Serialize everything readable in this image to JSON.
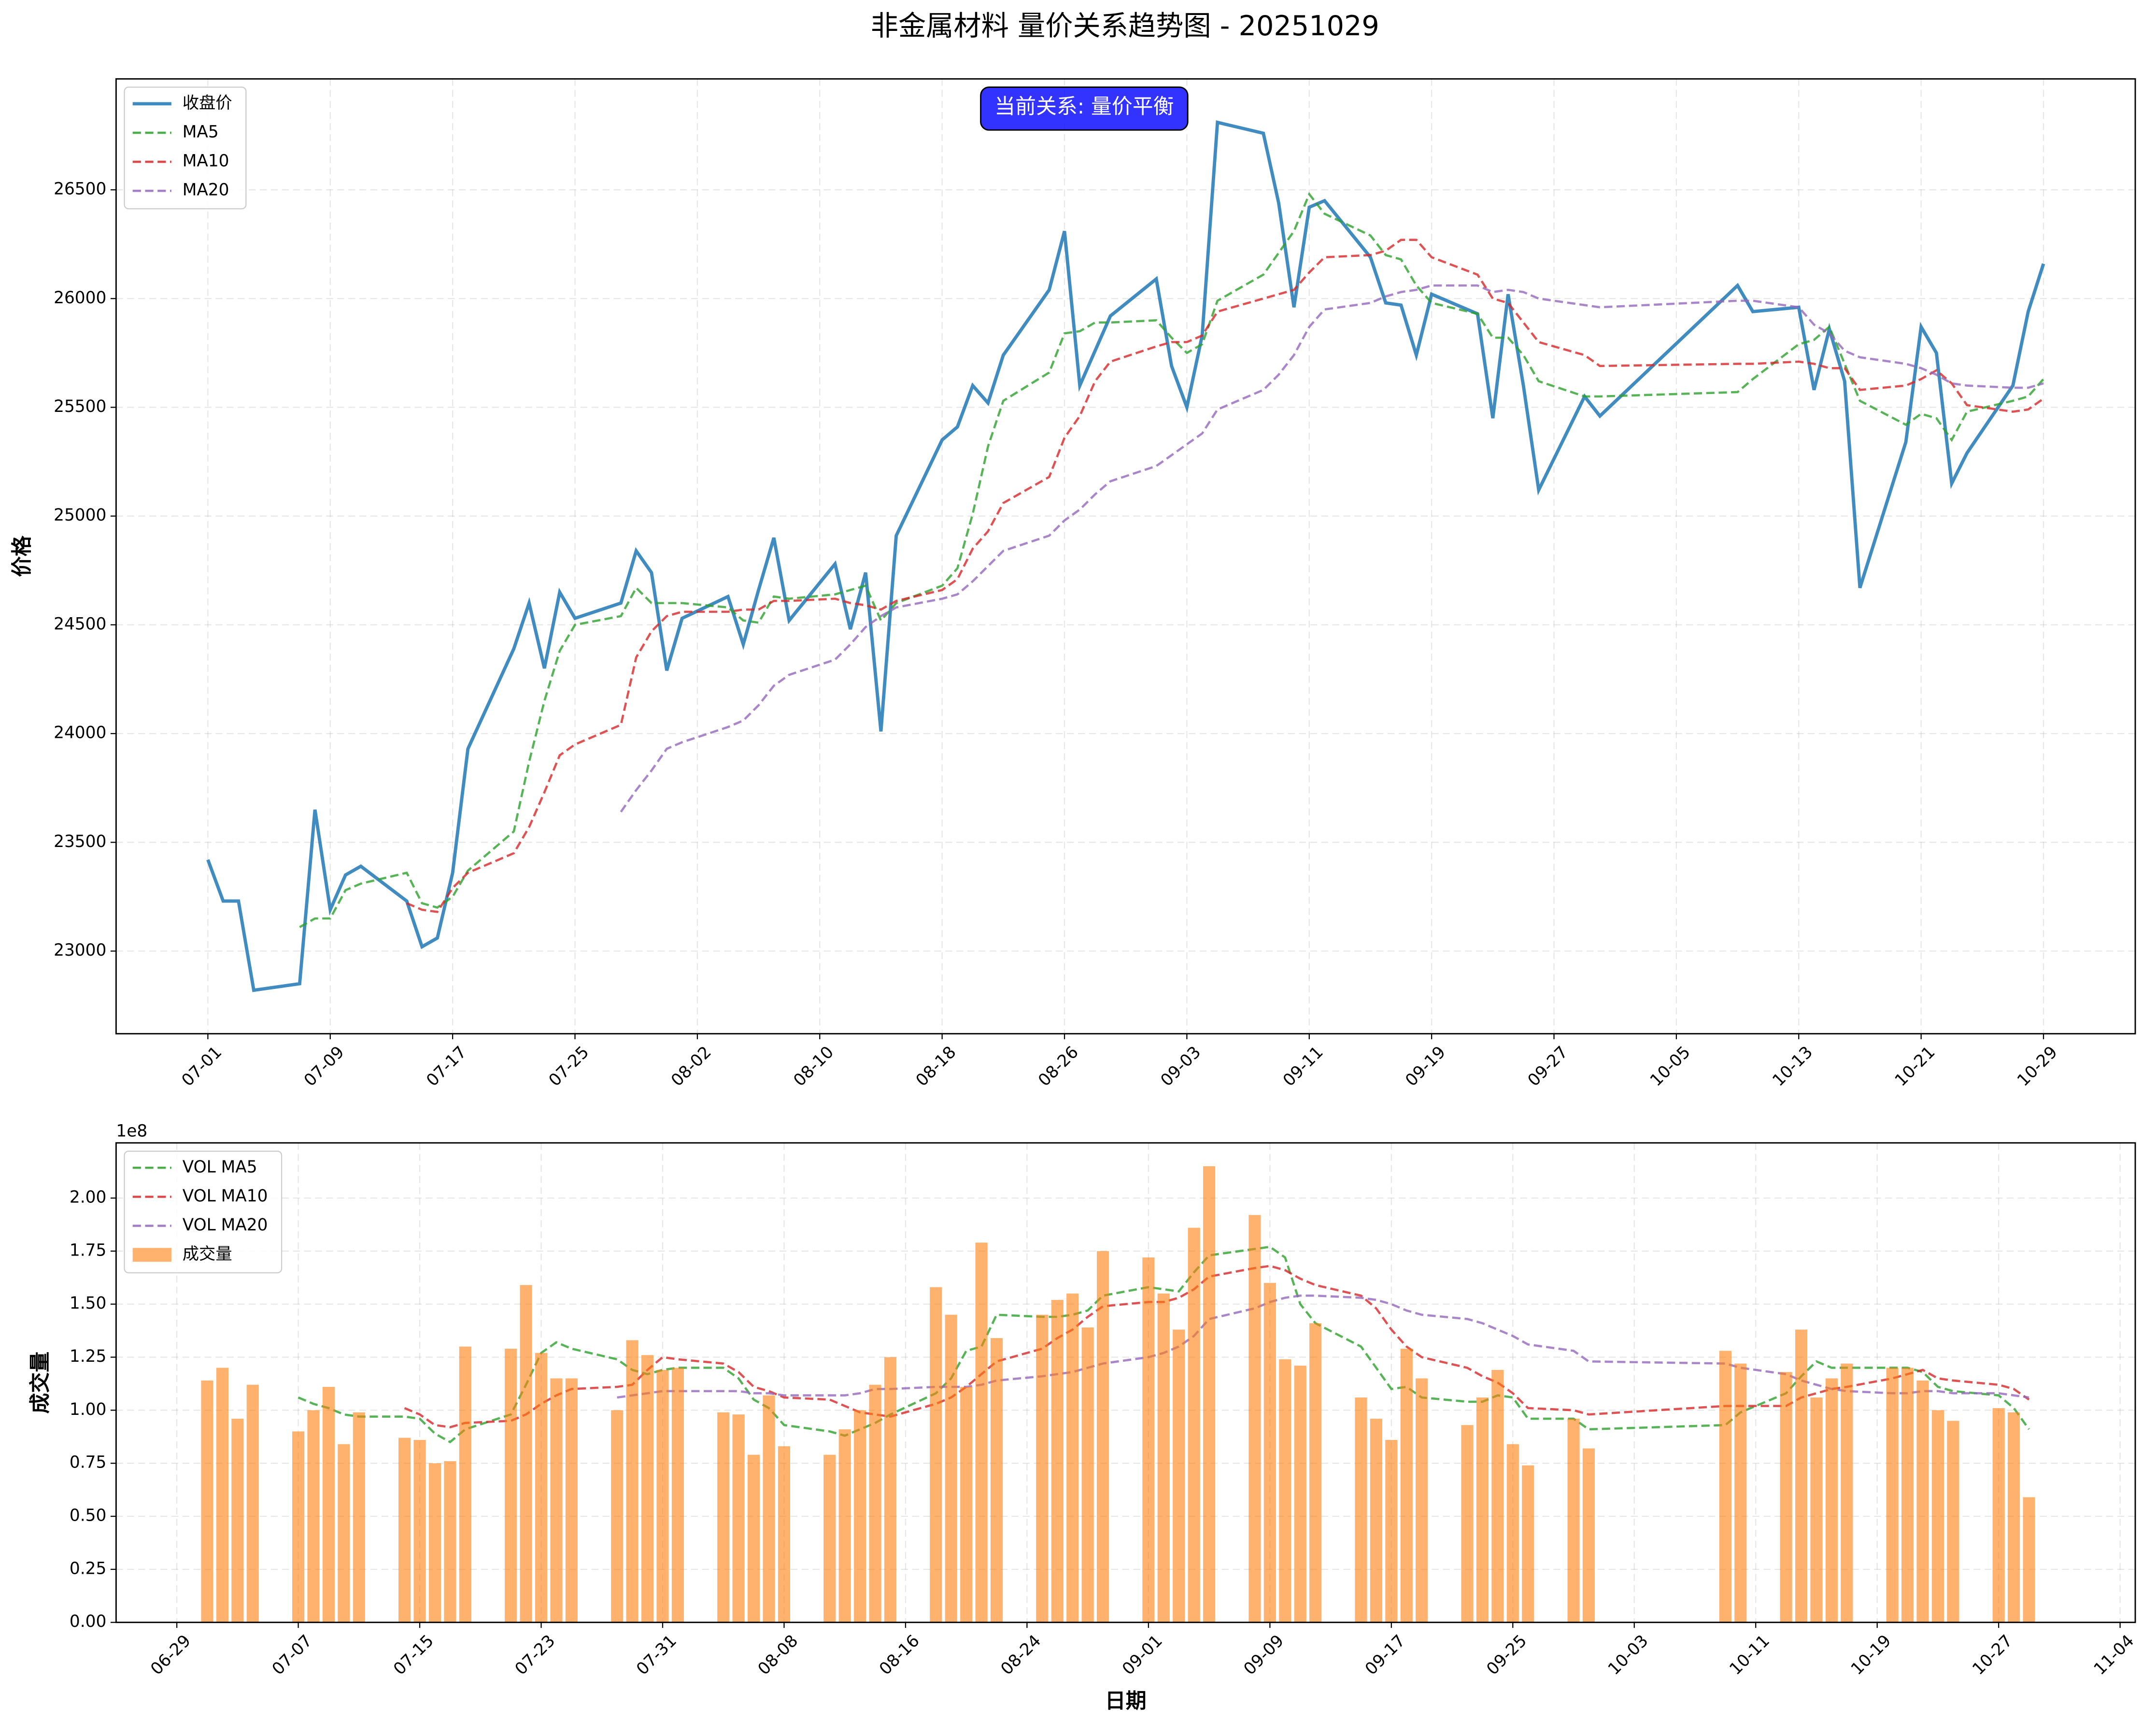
{
  "title": "非金属材料 量价关系趋势图 - 20251029",
  "chart_data": [
    {
      "type": "line",
      "ylabel": "价格",
      "legend": "upper left",
      "grid": true,
      "annotation": {
        "text": "当前关系: 量价平衡",
        "color": "#0000ff"
      },
      "xlim": [
        "06-25",
        "11-04"
      ],
      "xticks": [
        "07-01",
        "07-09",
        "07-17",
        "07-25",
        "08-02",
        "08-10",
        "08-18",
        "08-26",
        "09-03",
        "09-11",
        "09-19",
        "09-27",
        "10-05",
        "10-13",
        "10-21",
        "10-29"
      ],
      "ylim": [
        22620,
        27010
      ],
      "yticks": [
        23000,
        23500,
        24000,
        24500,
        25000,
        25500,
        26000,
        26500
      ],
      "x": [
        "07-01",
        "07-02",
        "07-03",
        "07-04",
        "07-07",
        "07-08",
        "07-09",
        "07-10",
        "07-11",
        "07-14",
        "07-15",
        "07-16",
        "07-17",
        "07-18",
        "07-21",
        "07-22",
        "07-23",
        "07-24",
        "07-25",
        "07-28",
        "07-29",
        "07-30",
        "07-31",
        "08-01",
        "08-04",
        "08-05",
        "08-06",
        "08-07",
        "08-08",
        "08-11",
        "08-12",
        "08-13",
        "08-14",
        "08-15",
        "08-18",
        "08-19",
        "08-20",
        "08-21",
        "08-22",
        "08-25",
        "08-26",
        "08-27",
        "08-28",
        "08-29",
        "09-01",
        "09-02",
        "09-03",
        "09-04",
        "09-05",
        "09-08",
        "09-09",
        "09-10",
        "09-11",
        "09-12",
        "09-15",
        "09-16",
        "09-17",
        "09-18",
        "09-19",
        "09-22",
        "09-23",
        "09-24",
        "09-25",
        "09-26",
        "09-29",
        "09-30",
        "10-09",
        "10-10",
        "10-13",
        "10-14",
        "10-15",
        "10-16",
        "10-17",
        "10-20",
        "10-21",
        "10-22",
        "10-23",
        "10-24",
        "10-27",
        "10-28",
        "10-29"
      ],
      "series": [
        {
          "name": "收盘价",
          "color": "#1f77b4",
          "dash": false,
          "values": [
            23420,
            23230,
            23230,
            22820,
            22850,
            23650,
            23190,
            23350,
            23390,
            23230,
            23020,
            23060,
            23360,
            23930,
            24390,
            24600,
            24300,
            24650,
            24530,
            24600,
            24840,
            24740,
            24290,
            24530,
            24630,
            24410,
            24660,
            24900,
            24520,
            24780,
            24480,
            24740,
            24010,
            24910,
            25350,
            25410,
            25600,
            25520,
            25740,
            26040,
            26310,
            25600,
            25760,
            25920,
            26090,
            25690,
            25500,
            25830,
            26810,
            26760,
            26440,
            25960,
            26420,
            26450,
            26190,
            25980,
            25970,
            25740,
            26020,
            25930,
            25450,
            26020,
            25600,
            25120,
            25550,
            25460,
            26060,
            25940,
            25960,
            25580,
            25860,
            25620,
            24670,
            25340,
            25870,
            25750,
            25150,
            25290,
            25600,
            25940,
            26160
          ]
        },
        {
          "name": "MA5",
          "color": "#2ca02c",
          "dash": true,
          "values": [
            null,
            null,
            null,
            null,
            23110,
            23150,
            23150,
            23280,
            23310,
            23360,
            23220,
            23200,
            23250,
            23370,
            23550,
            23870,
            24150,
            24380,
            24500,
            24540,
            24670,
            24600,
            24600,
            24600,
            24580,
            24520,
            24510,
            24630,
            24620,
            24640,
            24660,
            24680,
            24520,
            24600,
            24680,
            24760,
            25010,
            25320,
            25530,
            25660,
            25840,
            25850,
            25890,
            25890,
            25900,
            25820,
            25750,
            25790,
            25990,
            26110,
            26210,
            26310,
            26480,
            26390,
            26290,
            26200,
            26180,
            26060,
            25980,
            25930,
            25820,
            25820,
            25740,
            25620,
            25550,
            25550,
            25570,
            25630,
            25790,
            25810,
            25870,
            25700,
            25530,
            25420,
            25470,
            25450,
            25350,
            25480,
            25530,
            25550,
            25630
          ]
        },
        {
          "name": "MA10",
          "color": "#d62728",
          "dash": true,
          "values": [
            null,
            null,
            null,
            null,
            null,
            null,
            null,
            null,
            null,
            23220,
            23190,
            23180,
            23290,
            23360,
            23450,
            23570,
            23730,
            23900,
            23950,
            24040,
            24350,
            24470,
            24540,
            24560,
            24560,
            24570,
            24570,
            24610,
            24610,
            24620,
            24600,
            24590,
            24570,
            24610,
            24660,
            24710,
            24850,
            24930,
            25060,
            25180,
            25360,
            25460,
            25620,
            25710,
            25780,
            25800,
            25800,
            25830,
            25940,
            26000,
            26020,
            26040,
            26120,
            26190,
            26200,
            26220,
            26270,
            26270,
            26190,
            26110,
            26000,
            25980,
            25890,
            25800,
            25740,
            25690,
            25700,
            25700,
            25710,
            25700,
            25680,
            25680,
            25580,
            25600,
            25630,
            25670,
            25610,
            25510,
            25480,
            25490,
            25540
          ]
        },
        {
          "name": "MA20",
          "color": "#9467bd",
          "dash": true,
          "values": [
            null,
            null,
            null,
            null,
            null,
            null,
            null,
            null,
            null,
            null,
            null,
            null,
            null,
            null,
            null,
            null,
            null,
            null,
            null,
            23640,
            23740,
            23830,
            23930,
            23960,
            24030,
            24060,
            24130,
            24220,
            24270,
            24340,
            24410,
            24490,
            24540,
            24580,
            24620,
            24640,
            24700,
            24770,
            24840,
            24910,
            24980,
            25030,
            25100,
            25160,
            25230,
            25280,
            25330,
            25380,
            25490,
            25580,
            25650,
            25740,
            25870,
            25950,
            25980,
            26010,
            26030,
            26040,
            26060,
            26060,
            26030,
            26040,
            26030,
            26000,
            25970,
            25960,
            25990,
            25990,
            25960,
            25880,
            25840,
            25760,
            25730,
            25700,
            25680,
            25650,
            25610,
            25600,
            25590,
            25590,
            25610
          ]
        }
      ]
    },
    {
      "type": "bar",
      "ylabel": "成交量",
      "xlabel": "日期",
      "offset_label": "1e8",
      "legend": "upper left",
      "grid": true,
      "xlim": [
        "06-25",
        "11-05"
      ],
      "xticks": [
        "06-29",
        "07-07",
        "07-15",
        "07-23",
        "07-31",
        "08-08",
        "08-16",
        "08-24",
        "09-01",
        "09-09",
        "09-17",
        "09-25",
        "10-03",
        "10-11",
        "10-19",
        "10-27",
        "11-04"
      ],
      "ylim": [
        0,
        2.26
      ],
      "yticks": [
        {
          "value": 0,
          "label": "0.00"
        },
        {
          "value": 0.25,
          "label": "0.25"
        },
        {
          "value": 0.5,
          "label": "0.50"
        },
        {
          "value": 0.75,
          "label": "0.75"
        },
        {
          "value": 1,
          "label": "1.00"
        },
        {
          "value": 1.25,
          "label": "1.25"
        },
        {
          "value": 1.5,
          "label": "1.50"
        },
        {
          "value": 1.75,
          "label": "1.75"
        },
        {
          "value": 2,
          "label": "2.00"
        }
      ],
      "x": [
        "07-01",
        "07-02",
        "07-03",
        "07-04",
        "07-07",
        "07-08",
        "07-09",
        "07-10",
        "07-11",
        "07-14",
        "07-15",
        "07-16",
        "07-17",
        "07-18",
        "07-21",
        "07-22",
        "07-23",
        "07-24",
        "07-25",
        "07-28",
        "07-29",
        "07-30",
        "07-31",
        "08-01",
        "08-04",
        "08-05",
        "08-06",
        "08-07",
        "08-08",
        "08-11",
        "08-12",
        "08-13",
        "08-14",
        "08-15",
        "08-18",
        "08-19",
        "08-20",
        "08-21",
        "08-22",
        "08-25",
        "08-26",
        "08-27",
        "08-28",
        "08-29",
        "09-01",
        "09-02",
        "09-03",
        "09-04",
        "09-05",
        "09-08",
        "09-09",
        "09-10",
        "09-11",
        "09-12",
        "09-15",
        "09-16",
        "09-17",
        "09-18",
        "09-19",
        "09-22",
        "09-23",
        "09-24",
        "09-25",
        "09-26",
        "09-29",
        "09-30",
        "10-09",
        "10-10",
        "10-13",
        "10-14",
        "10-15",
        "10-16",
        "10-17",
        "10-20",
        "10-21",
        "10-22",
        "10-23",
        "10-24",
        "10-27",
        "10-28",
        "10-29"
      ],
      "series": [
        {
          "name": "VOL MA5",
          "type": "line",
          "color": "#2ca02c",
          "dash": true,
          "values": [
            null,
            null,
            null,
            null,
            1.06,
            1.03,
            1.01,
            0.98,
            0.97,
            0.97,
            0.96,
            0.89,
            0.85,
            0.91,
            0.98,
            1.12,
            1.27,
            1.32,
            1.29,
            1.24,
            1.19,
            1.17,
            1.19,
            1.2,
            1.2,
            1.15,
            1.05,
            1.01,
            0.93,
            0.9,
            0.88,
            0.91,
            0.94,
            0.98,
            1.08,
            1.15,
            1.28,
            1.3,
            1.45,
            1.44,
            1.44,
            1.45,
            1.47,
            1.54,
            1.58,
            1.57,
            1.56,
            1.65,
            1.73,
            1.76,
            1.77,
            1.72,
            1.5,
            1.41,
            1.3,
            1.2,
            1.1,
            1.11,
            1.06,
            1.04,
            1.04,
            1.07,
            1.06,
            0.96,
            0.96,
            0.91,
            0.93,
            0.99,
            1.08,
            1.16,
            1.23,
            1.2,
            1.2,
            1.2,
            1.2,
            1.18,
            1.11,
            1.09,
            1.07,
            1.01,
            0.91
          ]
        },
        {
          "name": "VOL MA10",
          "type": "line",
          "color": "#d62728",
          "dash": true,
          "values": [
            null,
            null,
            null,
            null,
            null,
            null,
            null,
            null,
            null,
            1.01,
            0.98,
            0.93,
            0.92,
            0.94,
            0.95,
            0.98,
            1.03,
            1.07,
            1.1,
            1.11,
            1.12,
            1.19,
            1.25,
            1.24,
            1.22,
            1.18,
            1.11,
            1.09,
            1.06,
            1.05,
            1.02,
            0.99,
            0.98,
            0.97,
            1.03,
            1.06,
            1.11,
            1.17,
            1.23,
            1.29,
            1.34,
            1.38,
            1.44,
            1.49,
            1.51,
            1.51,
            1.53,
            1.57,
            1.63,
            1.67,
            1.68,
            1.66,
            1.62,
            1.59,
            1.54,
            1.48,
            1.38,
            1.3,
            1.25,
            1.2,
            1.16,
            1.13,
            1.08,
            1.01,
            1,
            0.98,
            1.02,
            1.02,
            1.02,
            1.06,
            1.08,
            1.1,
            1.11,
            1.15,
            1.17,
            1.19,
            1.15,
            1.14,
            1.12,
            1.1,
            1.05
          ]
        },
        {
          "name": "VOL MA20",
          "type": "line",
          "color": "#9467bd",
          "dash": true,
          "values": [
            null,
            null,
            null,
            null,
            null,
            null,
            null,
            null,
            null,
            null,
            null,
            null,
            null,
            null,
            null,
            null,
            null,
            null,
            null,
            1.06,
            1.07,
            1.08,
            1.09,
            1.09,
            1.09,
            1.09,
            1.08,
            1.08,
            1.07,
            1.07,
            1.07,
            1.08,
            1.1,
            1.1,
            1.11,
            1.11,
            1.11,
            1.12,
            1.14,
            1.16,
            1.17,
            1.18,
            1.2,
            1.22,
            1.25,
            1.27,
            1.3,
            1.35,
            1.43,
            1.48,
            1.51,
            1.53,
            1.54,
            1.54,
            1.53,
            1.52,
            1.5,
            1.47,
            1.45,
            1.43,
            1.41,
            1.38,
            1.35,
            1.31,
            1.28,
            1.23,
            1.22,
            1.2,
            1.17,
            1.14,
            1.12,
            1.1,
            1.09,
            1.08,
            1.08,
            1.09,
            1.09,
            1.08,
            1.08,
            1.07,
            1.06
          ]
        },
        {
          "name": "成交量",
          "type": "bar",
          "color": "#ff7f0e",
          "values": [
            1.14,
            1.2,
            0.96,
            1.12,
            0.9,
            1,
            1.11,
            0.84,
            0.99,
            0.87,
            0.86,
            0.75,
            0.76,
            1.3,
            1.29,
            1.59,
            1.27,
            1.15,
            1.15,
            1,
            1.33,
            1.26,
            1.19,
            1.2,
            0.99,
            0.98,
            0.79,
            1.07,
            0.83,
            0.79,
            0.91,
            1,
            1.12,
            1.25,
            1.58,
            1.45,
            1.11,
            1.79,
            1.34,
            1.45,
            1.52,
            1.55,
            1.39,
            1.75,
            1.72,
            1.55,
            1.38,
            1.86,
            2.15,
            1.92,
            1.6,
            1.24,
            1.21,
            1.41,
            1.06,
            0.96,
            0.86,
            1.29,
            1.15,
            0.93,
            1.06,
            1.19,
            0.84,
            0.74,
            0.96,
            0.82,
            1.28,
            1.22,
            1.18,
            1.38,
            1.06,
            1.15,
            1.22,
            1.2,
            1.2,
            1.14,
            1,
            0.95,
            1.01,
            0.99,
            0.59
          ]
        }
      ]
    }
  ]
}
